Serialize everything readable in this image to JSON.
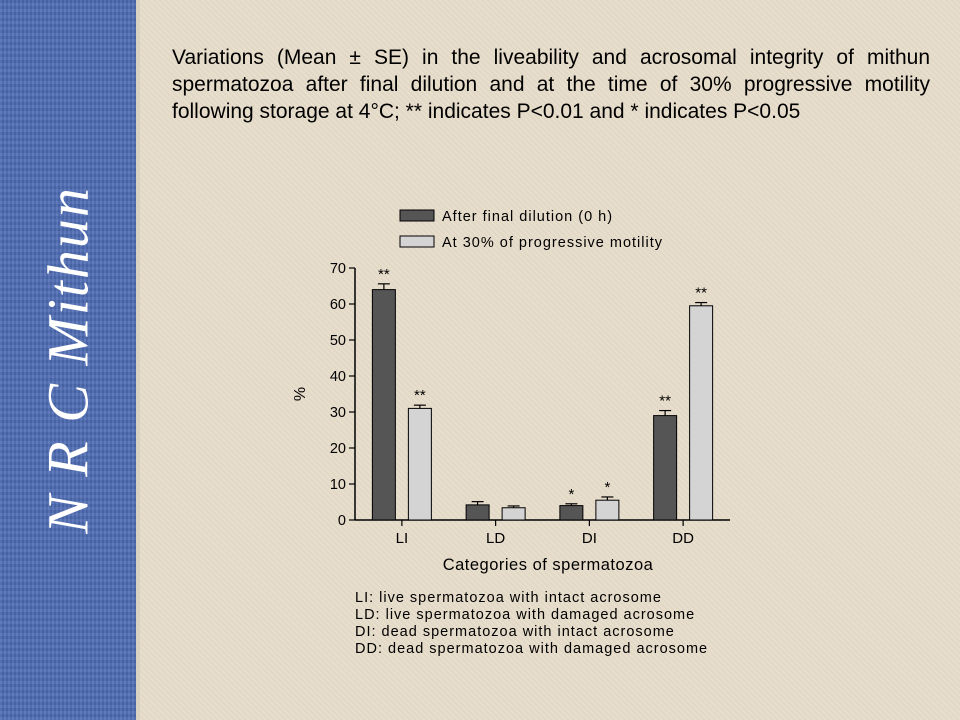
{
  "sidebar": {
    "title": "N R C Mithun"
  },
  "caption": "Variations (Mean ± SE) in the liveability and acrosomal integrity of mithun spermatozoa after final dilution and at the time of 30% progressive motility following storage at 4°C; ** indicates P<0.01 and * indicates P<0.05",
  "chart_data": {
    "type": "bar",
    "title": "",
    "xlabel": "Categories of spermatozoa",
    "ylabel": "%",
    "ylim": [
      0,
      70
    ],
    "yticks": [
      0,
      10,
      20,
      30,
      40,
      50,
      60,
      70
    ],
    "categories": [
      "LI",
      "LD",
      "DI",
      "DD"
    ],
    "series": [
      {
        "name": "After final dilution (0 h)",
        "color": "#555555",
        "values": [
          64,
          4.2,
          4,
          29
        ],
        "errors": [
          1.6,
          0.9,
          0.5,
          1.4
        ],
        "significance": [
          "**",
          "",
          "*",
          "**"
        ]
      },
      {
        "name": "At 30% of progressive motility",
        "color": "#d4d4d4",
        "values": [
          31,
          3.4,
          5.5,
          59.5
        ],
        "errors": [
          0.9,
          0.5,
          0.9,
          0.9
        ],
        "significance": [
          "**",
          "",
          "*",
          "**"
        ]
      }
    ],
    "grid": false,
    "legend": "top"
  },
  "abbreviations": [
    "LI: live spermatozoa with intact acrosome",
    "LD: live spermatozoa with damaged acrosome",
    "DI: dead spermatozoa with intact acrosome",
    "DD: dead spermatozoa with damaged acrosome"
  ]
}
